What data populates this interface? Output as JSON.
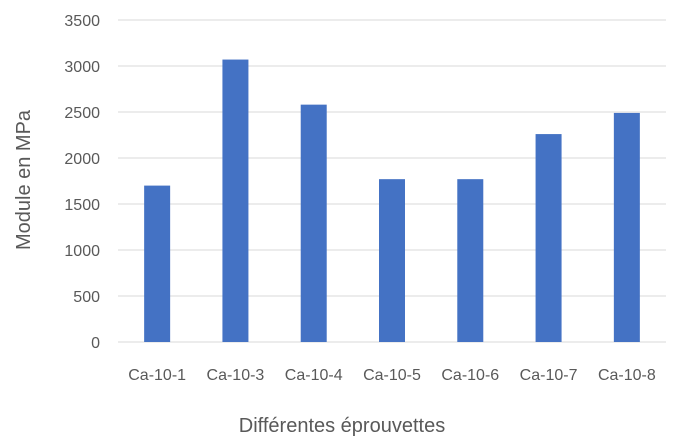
{
  "chart_data": {
    "type": "bar",
    "title": "",
    "xlabel": "Différentes éprouvettes",
    "ylabel": "Module en MPa",
    "categories": [
      "Ca-10-1",
      "Ca-10-3",
      "Ca-10-4",
      "Ca-10-5",
      "Ca-10-6",
      "Ca-10-7",
      "Ca-10-8"
    ],
    "values": [
      1700,
      3070,
      2580,
      1770,
      1770,
      2260,
      2490
    ],
    "ylim": [
      0,
      3500
    ],
    "yticks": [
      0,
      500,
      1000,
      1500,
      2000,
      2500,
      3000,
      3500
    ],
    "grid": true,
    "legend": "none",
    "bar_color": "#4472C4",
    "grid_color": "#D9D9D9",
    "text_color": "#595959"
  }
}
